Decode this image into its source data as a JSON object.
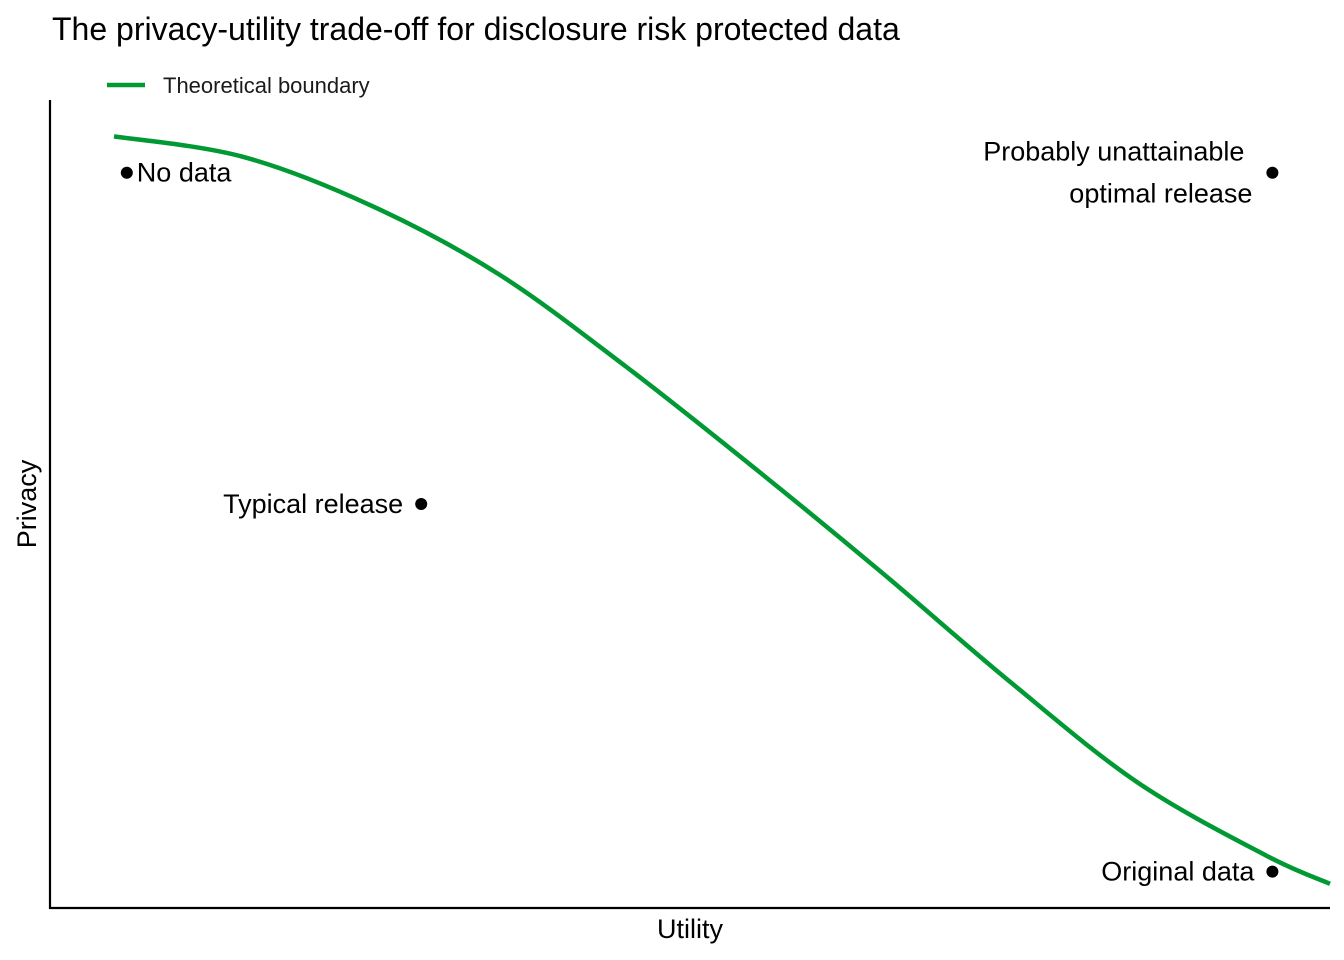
{
  "chart_data": {
    "type": "line",
    "title": "The privacy-utility trade-off for disclosure risk protected data",
    "xlabel": "Utility",
    "ylabel": "Privacy",
    "xlim": [
      0,
      1
    ],
    "ylim": [
      0,
      1
    ],
    "show_ticks": false,
    "grid": false,
    "legend_position": "top-left",
    "series": [
      {
        "name": "Theoretical boundary",
        "color": "#009933",
        "x": [
          0.05,
          0.15,
          0.25,
          0.35,
          0.45,
          0.55,
          0.65,
          0.75,
          0.85,
          0.95,
          1.0
        ],
        "y": [
          0.955,
          0.93,
          0.87,
          0.785,
          0.67,
          0.545,
          0.415,
          0.28,
          0.155,
          0.065,
          0.03
        ]
      }
    ],
    "points": [
      {
        "label": "No data",
        "x": 0.06,
        "y": 0.91,
        "label_lines": [
          "No data"
        ],
        "label_side": "right"
      },
      {
        "label": "Probably unattainable optimal release",
        "x": 0.955,
        "y": 0.91,
        "label_lines": [
          "Probably unattainable",
          "optimal release"
        ],
        "label_side": "left"
      },
      {
        "label": "Typical release",
        "x": 0.29,
        "y": 0.5,
        "label_lines": [
          "Typical release"
        ],
        "label_side": "left"
      },
      {
        "label": "Original data",
        "x": 0.955,
        "y": 0.045,
        "label_lines": [
          "Original data"
        ],
        "label_side": "left"
      }
    ],
    "point_color": "#000000"
  }
}
